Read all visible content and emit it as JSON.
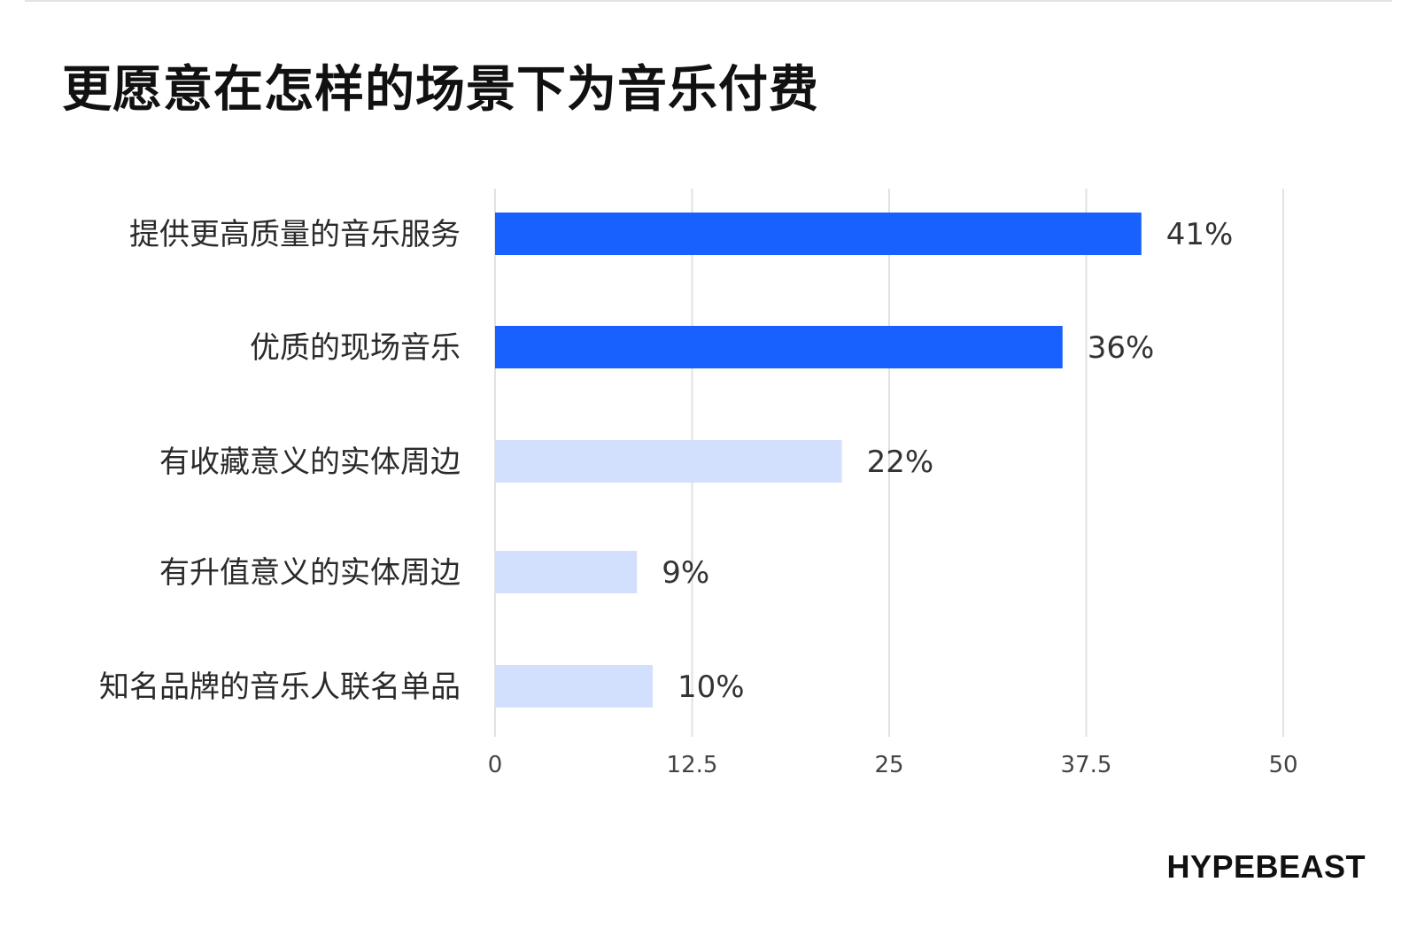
{
  "title": "更愿意在怎样的场景下为音乐付费",
  "brand": "HYPEBEAST",
  "colors": {
    "highlight": "#1861ff",
    "muted": "#d3e0fd",
    "grid": "#e2e2e2"
  },
  "chart_data": {
    "type": "bar",
    "orientation": "horizontal",
    "title": "更愿意在怎样的场景下为音乐付费",
    "categories": [
      "提供更高质量的音乐服务",
      "优质的现场音乐",
      "有收藏意义的实体周边",
      "有升值意义的实体周边",
      "知名品牌的音乐人联名单品"
    ],
    "values": [
      41,
      36,
      22,
      9,
      10
    ],
    "value_labels": [
      "41%",
      "36%",
      "22%",
      "9%",
      "10%"
    ],
    "highlighted": [
      true,
      true,
      false,
      false,
      false
    ],
    "xlim": [
      0,
      50
    ],
    "xticks": [
      0,
      12.5,
      25,
      37.5,
      50
    ],
    "xtick_labels": [
      "0",
      "12.5",
      "25",
      "37.5",
      "50"
    ],
    "grid": true,
    "xlabel": "",
    "ylabel": ""
  }
}
